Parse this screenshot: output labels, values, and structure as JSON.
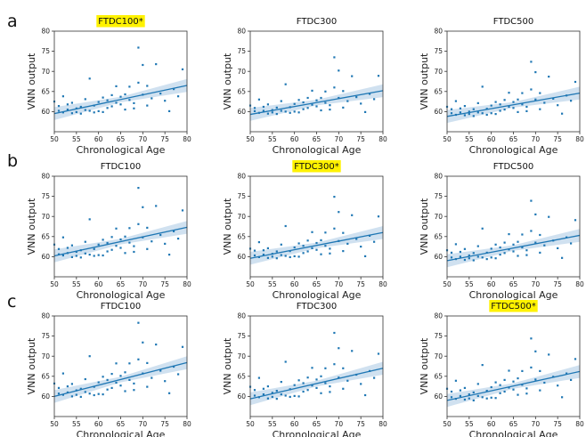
{
  "figure": {
    "row_labels": [
      "a",
      "b",
      "c"
    ],
    "highlight_color": "#fff200",
    "point_color": "#1f77b4",
    "band_color": "#a9c8e4"
  },
  "chart_data": [
    {
      "type": "scatter",
      "title": "FTDC100*",
      "highlighted": true,
      "xlabel": "Chronological Age",
      "ylabel": "VNN output",
      "xlim": [
        50,
        80
      ],
      "ylim": [
        55,
        80
      ],
      "xticks": [
        50,
        55,
        60,
        65,
        70,
        75,
        80
      ],
      "yticks": [
        60,
        65,
        70,
        75,
        80
      ],
      "regression": {
        "start": [
          50,
          59.5
        ],
        "end": [
          80,
          66.5
        ]
      },
      "x": [
        50,
        51,
        51,
        52,
        52,
        53,
        53,
        54,
        54,
        55,
        55,
        56,
        56,
        57,
        57,
        58,
        58,
        59,
        59,
        60,
        60,
        61,
        61,
        62,
        62,
        63,
        63,
        64,
        64,
        65,
        65,
        66,
        66,
        67,
        67,
        68,
        68,
        69,
        69,
        70,
        70,
        71,
        71,
        72,
        73,
        74,
        75,
        76,
        77,
        78,
        79
      ],
      "y": [
        62.5,
        60.2,
        61.4,
        59.8,
        63.8,
        60.5,
        61.8,
        59.6,
        62.2,
        59.9,
        60.8,
        61.2,
        59.5,
        60.4,
        63.1,
        60.2,
        68.2,
        59.8,
        61.5,
        62.4,
        60.1,
        59.9,
        63.5,
        62.8,
        60.9,
        64.1,
        61.3,
        62.2,
        66.3,
        61.8,
        63.7,
        60.5,
        64.3,
        66.2,
        62.9,
        60.8,
        62.1,
        75.9,
        67.2,
        71.6,
        64.2,
        66.4,
        61.5,
        63.3,
        71.8,
        64.5,
        62.7,
        60.1,
        65.6,
        63.8,
        70.5
      ]
    },
    {
      "type": "scatter",
      "title": "FTDC300",
      "highlighted": false,
      "xlabel": "Chronological Age",
      "ylabel": "VNN output",
      "xlim": [
        50,
        80
      ],
      "ylim": [
        55,
        80
      ],
      "xticks": [
        50,
        55,
        60,
        65,
        70,
        75,
        80
      ],
      "yticks": [
        60,
        65,
        70,
        75,
        80
      ],
      "regression": {
        "start": [
          50,
          59.3
        ],
        "end": [
          80,
          65.2
        ]
      },
      "x": [
        50,
        51,
        51,
        52,
        52,
        53,
        53,
        54,
        54,
        55,
        55,
        56,
        56,
        57,
        57,
        58,
        58,
        59,
        59,
        60,
        60,
        61,
        61,
        62,
        62,
        63,
        63,
        64,
        64,
        65,
        65,
        66,
        66,
        67,
        67,
        68,
        68,
        69,
        69,
        70,
        70,
        71,
        71,
        72,
        73,
        74,
        75,
        76,
        77,
        78,
        79
      ],
      "y": [
        61.5,
        60.1,
        60.9,
        59.7,
        63.0,
        60.2,
        61.2,
        59.5,
        61.8,
        59.8,
        60.4,
        61.0,
        59.4,
        60.2,
        62.6,
        60.0,
        66.8,
        59.7,
        61.1,
        61.9,
        60.0,
        59.8,
        62.9,
        62.3,
        60.6,
        63.4,
        60.9,
        61.7,
        65.2,
        61.3,
        62.8,
        60.3,
        63.4,
        65.0,
        62.2,
        60.5,
        61.6,
        73.5,
        66.0,
        70.2,
        63.4,
        65.1,
        61.0,
        62.6,
        68.8,
        63.6,
        62.0,
        59.9,
        64.4,
        63.1,
        68.9
      ]
    },
    {
      "type": "scatter",
      "title": "FTDC500",
      "highlighted": false,
      "xlabel": "Chronological Age",
      "ylabel": "VNN output",
      "xlim": [
        50,
        80
      ],
      "ylim": [
        55,
        80
      ],
      "xticks": [
        50,
        55,
        60,
        65,
        70,
        75,
        80
      ],
      "yticks": [
        60,
        65,
        70,
        75,
        80
      ],
      "regression": {
        "start": [
          50,
          58.8
        ],
        "end": [
          80,
          64.6
        ]
      },
      "x": [
        50,
        51,
        51,
        52,
        52,
        53,
        53,
        54,
        54,
        55,
        55,
        56,
        56,
        57,
        57,
        58,
        58,
        59,
        59,
        60,
        60,
        61,
        61,
        62,
        62,
        63,
        63,
        64,
        64,
        65,
        65,
        66,
        66,
        67,
        67,
        68,
        68,
        69,
        69,
        70,
        70,
        71,
        71,
        72,
        73,
        74,
        75,
        76,
        77,
        78,
        79
      ],
      "y": [
        61.2,
        59.6,
        60.6,
        59.2,
        62.6,
        59.8,
        60.8,
        59.1,
        61.4,
        59.4,
        60.0,
        60.6,
        58.9,
        59.8,
        62.1,
        59.6,
        66.2,
        59.2,
        60.7,
        61.5,
        59.6,
        59.4,
        62.4,
        61.8,
        60.2,
        62.9,
        60.5,
        61.2,
        64.7,
        60.9,
        62.4,
        59.9,
        63.0,
        64.6,
        61.8,
        60.1,
        61.2,
        72.4,
        65.5,
        69.8,
        63.0,
        64.6,
        60.6,
        62.2,
        68.7,
        63.2,
        61.6,
        59.5,
        64.0,
        62.7,
        67.4
      ]
    },
    {
      "type": "scatter",
      "title": "FTDC100",
      "highlighted": false,
      "xlabel": "Chronological Age",
      "ylabel": "VNN output",
      "xlim": [
        50,
        80
      ],
      "ylim": [
        55,
        80
      ],
      "xticks": [
        50,
        55,
        60,
        65,
        70,
        75,
        80
      ],
      "yticks": [
        60,
        65,
        70,
        75,
        80
      ],
      "regression": {
        "start": [
          50,
          60.2
        ],
        "end": [
          80,
          67.3
        ]
      },
      "x": [
        50,
        51,
        51,
        52,
        52,
        53,
        53,
        54,
        54,
        55,
        55,
        56,
        56,
        57,
        57,
        58,
        58,
        59,
        59,
        60,
        60,
        61,
        61,
        62,
        62,
        63,
        63,
        64,
        64,
        65,
        65,
        66,
        66,
        67,
        67,
        68,
        68,
        69,
        69,
        70,
        70,
        71,
        71,
        72,
        73,
        74,
        75,
        76,
        77,
        78,
        79
      ],
      "y": [
        63.0,
        60.6,
        61.9,
        60.3,
        64.8,
        60.9,
        62.2,
        59.9,
        62.8,
        60.2,
        61.2,
        61.6,
        59.8,
        60.8,
        63.7,
        60.5,
        69.3,
        60.2,
        61.9,
        63.0,
        60.4,
        60.3,
        64.2,
        63.4,
        61.3,
        64.9,
        61.7,
        62.7,
        67.0,
        62.2,
        64.3,
        60.9,
        65.0,
        67.1,
        63.5,
        61.2,
        62.6,
        77.1,
        68.1,
        72.3,
        64.8,
        67.2,
        61.9,
        63.8,
        72.6,
        65.4,
        63.2,
        60.5,
        66.3,
        64.5,
        71.5
      ]
    },
    {
      "type": "scatter",
      "title": "FTDC300*",
      "highlighted": true,
      "xlabel": "Chronological Age",
      "ylabel": "VNN output",
      "xlim": [
        50,
        80
      ],
      "ylim": [
        55,
        80
      ],
      "xticks": [
        50,
        55,
        60,
        65,
        70,
        75,
        80
      ],
      "yticks": [
        60,
        65,
        70,
        75,
        80
      ],
      "regression": {
        "start": [
          50,
          59.6
        ],
        "end": [
          80,
          66.0
        ]
      },
      "x": [
        50,
        51,
        51,
        52,
        52,
        53,
        53,
        54,
        54,
        55,
        55,
        56,
        56,
        57,
        57,
        58,
        58,
        59,
        59,
        60,
        60,
        61,
        61,
        62,
        62,
        63,
        63,
        64,
        64,
        65,
        65,
        66,
        66,
        67,
        67,
        68,
        68,
        69,
        69,
        70,
        70,
        71,
        71,
        72,
        73,
        74,
        75,
        76,
        77,
        78,
        79
      ],
      "y": [
        62.0,
        60.3,
        61.5,
        59.9,
        63.6,
        60.5,
        61.6,
        59.7,
        62.1,
        60.0,
        60.7,
        61.3,
        59.6,
        60.4,
        63.0,
        60.2,
        67.6,
        59.9,
        61.4,
        62.3,
        60.1,
        60.0,
        63.3,
        62.7,
        60.9,
        64.0,
        61.3,
        62.1,
        66.1,
        61.7,
        63.4,
        60.6,
        64.1,
        66.0,
        62.7,
        60.8,
        62.0,
        74.9,
        67.0,
        71.1,
        63.9,
        65.9,
        61.4,
        63.2,
        70.3,
        64.4,
        62.5,
        60.1,
        65.2,
        63.7,
        70.0
      ]
    },
    {
      "type": "scatter",
      "title": "FTDC500",
      "highlighted": false,
      "xlabel": "Chronological Age",
      "ylabel": "VNN output",
      "xlim": [
        50,
        80
      ],
      "ylim": [
        55,
        80
      ],
      "xticks": [
        50,
        55,
        60,
        65,
        70,
        75,
        80
      ],
      "yticks": [
        60,
        65,
        70,
        75,
        80
      ],
      "regression": {
        "start": [
          50,
          59.0
        ],
        "end": [
          80,
          65.3
        ]
      },
      "x": [
        50,
        51,
        51,
        52,
        52,
        53,
        53,
        54,
        54,
        55,
        55,
        56,
        56,
        57,
        57,
        58,
        58,
        59,
        59,
        60,
        60,
        61,
        61,
        62,
        62,
        63,
        63,
        64,
        64,
        65,
        65,
        66,
        66,
        67,
        67,
        68,
        68,
        69,
        69,
        70,
        70,
        71,
        71,
        72,
        73,
        74,
        75,
        76,
        77,
        78,
        79
      ],
      "y": [
        61.6,
        59.8,
        61.0,
        59.4,
        63.1,
        60.0,
        61.2,
        59.2,
        61.9,
        59.6,
        60.3,
        60.9,
        59.1,
        60.0,
        62.6,
        59.8,
        67.0,
        59.4,
        61.0,
        62.0,
        59.8,
        59.6,
        63.0,
        62.3,
        60.5,
        63.5,
        60.9,
        61.8,
        65.6,
        61.3,
        63.0,
        60.2,
        63.7,
        65.5,
        62.3,
        60.4,
        61.6,
        73.9,
        66.4,
        70.5,
        63.5,
        65.4,
        61.0,
        62.8,
        69.9,
        64.0,
        62.1,
        59.7,
        64.8,
        63.3,
        69.1
      ]
    },
    {
      "type": "scatter",
      "title": "FTDC100",
      "highlighted": false,
      "xlabel": "Chronological Age",
      "ylabel": "VNN output",
      "xlim": [
        50,
        80
      ],
      "ylim": [
        55,
        80
      ],
      "xticks": [
        50,
        55,
        60,
        65,
        70,
        75,
        80
      ],
      "yticks": [
        60,
        65,
        70,
        75,
        80
      ],
      "regression": {
        "start": [
          50,
          60.0
        ],
        "end": [
          80,
          68.4
        ]
      },
      "x": [
        50,
        51,
        51,
        52,
        52,
        53,
        53,
        54,
        54,
        55,
        55,
        56,
        56,
        57,
        57,
        58,
        58,
        59,
        59,
        60,
        60,
        61,
        61,
        62,
        62,
        63,
        63,
        64,
        64,
        65,
        65,
        66,
        66,
        67,
        67,
        68,
        68,
        69,
        69,
        70,
        70,
        71,
        71,
        72,
        73,
        74,
        75,
        76,
        77,
        78,
        79
      ],
      "y": [
        63.2,
        60.7,
        62.1,
        60.4,
        65.7,
        61.0,
        62.5,
        60.0,
        63.1,
        60.4,
        61.5,
        61.9,
        59.9,
        61.1,
        64.3,
        60.7,
        70.0,
        60.3,
        62.4,
        63.5,
        60.6,
        60.5,
        64.9,
        64.1,
        61.7,
        65.6,
        62.1,
        63.4,
        68.2,
        62.7,
        65.1,
        61.3,
        66.0,
        68.2,
        64.1,
        61.6,
        63.2,
        78.3,
        69.2,
        73.4,
        65.7,
        68.3,
        62.4,
        64.6,
        72.9,
        66.4,
        63.8,
        60.8,
        67.4,
        65.5,
        72.3
      ]
    },
    {
      "type": "scatter",
      "title": "FTDC300",
      "highlighted": false,
      "xlabel": "Chronological Age",
      "ylabel": "VNN output",
      "xlim": [
        50,
        80
      ],
      "ylim": [
        55,
        80
      ],
      "xticks": [
        50,
        55,
        60,
        65,
        70,
        75,
        80
      ],
      "yticks": [
        60,
        65,
        70,
        75,
        80
      ],
      "regression": {
        "start": [
          50,
          59.4
        ],
        "end": [
          80,
          67.0
        ]
      },
      "x": [
        50,
        51,
        51,
        52,
        52,
        53,
        53,
        54,
        54,
        55,
        55,
        56,
        56,
        57,
        57,
        58,
        58,
        59,
        59,
        60,
        60,
        61,
        61,
        62,
        62,
        63,
        63,
        64,
        64,
        65,
        65,
        66,
        66,
        67,
        67,
        68,
        68,
        69,
        69,
        70,
        70,
        71,
        71,
        72,
        73,
        74,
        75,
        76,
        77,
        78,
        79
      ],
      "y": [
        62.4,
        60.2,
        61.6,
        59.8,
        64.6,
        60.5,
        61.9,
        59.5,
        62.5,
        59.9,
        60.9,
        61.4,
        59.4,
        60.5,
        63.6,
        60.2,
        68.6,
        59.9,
        61.8,
        62.8,
        60.1,
        60.0,
        64.0,
        63.3,
        61.2,
        64.7,
        61.6,
        62.7,
        67.1,
        62.1,
        64.2,
        60.8,
        65.0,
        67.0,
        63.3,
        61.1,
        62.5,
        75.8,
        68.0,
        72.0,
        64.7,
        67.0,
        61.9,
        63.9,
        71.3,
        65.4,
        63.1,
        60.3,
        66.3,
        64.6,
        70.6
      ]
    },
    {
      "type": "scatter",
      "title": "FTDC500*",
      "highlighted": true,
      "xlabel": "Chronological Age",
      "ylabel": "VNN output",
      "xlim": [
        50,
        80
      ],
      "ylim": [
        55,
        80
      ],
      "xticks": [
        50,
        55,
        60,
        65,
        70,
        75,
        80
      ],
      "yticks": [
        60,
        65,
        70,
        75,
        80
      ],
      "regression": {
        "start": [
          50,
          59.0
        ],
        "end": [
          80,
          66.2
        ]
      },
      "x": [
        50,
        51,
        51,
        52,
        52,
        53,
        53,
        54,
        54,
        55,
        55,
        56,
        56,
        57,
        57,
        58,
        58,
        59,
        59,
        60,
        60,
        61,
        61,
        62,
        62,
        63,
        63,
        64,
        64,
        65,
        65,
        66,
        66,
        67,
        67,
        68,
        68,
        69,
        69,
        70,
        70,
        71,
        71,
        72,
        73,
        74,
        75,
        76,
        77,
        78,
        79
      ],
      "y": [
        61.9,
        59.8,
        61.2,
        59.4,
        63.9,
        60.1,
        61.5,
        59.2,
        62.1,
        59.5,
        60.5,
        61.0,
        59.0,
        60.1,
        63.1,
        59.8,
        67.8,
        59.5,
        61.4,
        62.3,
        59.7,
        59.6,
        63.5,
        62.8,
        60.8,
        64.1,
        61.2,
        62.2,
        66.4,
        61.7,
        63.7,
        60.4,
        64.5,
        66.3,
        62.9,
        60.7,
        62.0,
        74.4,
        67.2,
        71.2,
        64.2,
        66.3,
        61.5,
        63.4,
        70.4,
        64.9,
        62.7,
        59.8,
        65.7,
        64.1,
        69.3
      ]
    }
  ]
}
